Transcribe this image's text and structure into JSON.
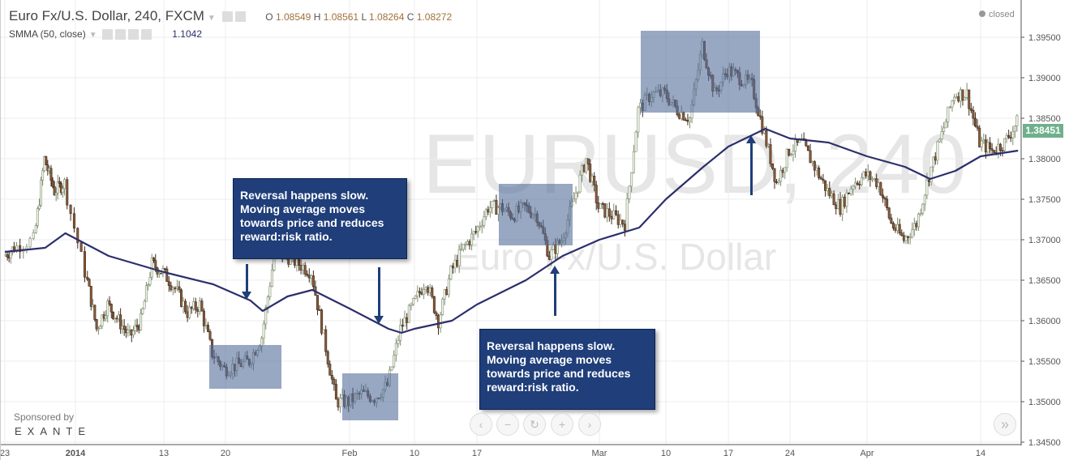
{
  "header": {
    "symbol_title": "Euro Fx/U.S. Dollar, 240, FXCM",
    "ohlc": {
      "o_label": "O",
      "o": "1.08549",
      "h_label": "H",
      "h": "1.08561",
      "l_label": "L",
      "l": "1.08264",
      "c_label": "C",
      "c": "1.08272"
    },
    "indicator": "SMMA (50, close)",
    "indicator_value": "1.1042",
    "status": "closed"
  },
  "watermark": {
    "symbol": "EURUSD, 240",
    "name": "Euro Fx/U.S. Dollar"
  },
  "annotations": {
    "callout_1": [
      "Reversal happens slow.",
      "Moving average moves",
      "towards price and reduces",
      "reward:risk ratio."
    ],
    "callout_2": [
      "Reversal happens slow.",
      "Moving average moves",
      "towards price and reduces",
      "reward:risk ratio."
    ]
  },
  "sponsor": {
    "label": "Sponsored by",
    "brand": "EXANTE"
  },
  "nav_buttons": [
    "‹",
    "−",
    "↻",
    "+",
    "›"
  ],
  "scroll_right": "»",
  "last_price": "1.38451",
  "colors": {
    "down_body": "#8a5a3a",
    "up_outline": "#7d8c6e",
    "smma": "#2b2f6b",
    "highlight": "#546c99",
    "callout": "#1f3e7a",
    "last_price": "#6fb08c"
  },
  "chart_data": {
    "type": "candlestick",
    "title": "Euro Fx/U.S. Dollar, 240, FXCM",
    "ylim": [
      1.3448,
      1.3996
    ],
    "y_ticks": [
      "1.39500",
      "1.39000",
      "1.38500",
      "1.38000",
      "1.37500",
      "1.37000",
      "1.36500",
      "1.36000",
      "1.35500",
      "1.35000",
      "1.34500"
    ],
    "x_ticks": [
      {
        "label": "23",
        "date": "2013-12-23"
      },
      {
        "label": "2014",
        "date": "2014-01-01"
      },
      {
        "label": "13",
        "date": "2014-01-13"
      },
      {
        "label": "20",
        "date": "2014-01-20"
      },
      {
        "label": "Feb",
        "date": "2014-02-03"
      },
      {
        "label": "10",
        "date": "2014-02-10"
      },
      {
        "label": "17",
        "date": "2014-02-17"
      },
      {
        "label": "Mar",
        "date": "2014-03-03"
      },
      {
        "label": "10",
        "date": "2014-03-10"
      },
      {
        "label": "17",
        "date": "2014-03-17"
      },
      {
        "label": "24",
        "date": "2014-03-24"
      },
      {
        "label": "Apr",
        "date": "2014-04-01"
      },
      {
        "label": "14",
        "date": "2014-04-14"
      }
    ],
    "grid": true,
    "close_path": [
      [
        "2013-12-23",
        1.368
      ],
      [
        "2013-12-24",
        1.369
      ],
      [
        "2013-12-26",
        1.37
      ],
      [
        "2013-12-27",
        1.38
      ],
      [
        "2013-12-30",
        1.376
      ],
      [
        "2013-12-31",
        1.377
      ],
      [
        "2014-01-02",
        1.366
      ],
      [
        "2014-01-03",
        1.359
      ],
      [
        "2014-01-06",
        1.362
      ],
      [
        "2014-01-07",
        1.36
      ],
      [
        "2014-01-08",
        1.358
      ],
      [
        "2014-01-09",
        1.36
      ],
      [
        "2014-01-10",
        1.367
      ],
      [
        "2014-01-13",
        1.366
      ],
      [
        "2014-01-14",
        1.364
      ],
      [
        "2014-01-15",
        1.361
      ],
      [
        "2014-01-16",
        1.362
      ],
      [
        "2014-01-17",
        1.356
      ],
      [
        "2014-01-20",
        1.354
      ],
      [
        "2014-01-21",
        1.3545
      ],
      [
        "2014-01-22",
        1.355
      ],
      [
        "2014-01-23",
        1.358
      ],
      [
        "2014-01-24",
        1.368
      ],
      [
        "2014-01-27",
        1.368
      ],
      [
        "2014-01-28",
        1.367
      ],
      [
        "2014-01-29",
        1.366
      ],
      [
        "2014-01-30",
        1.358
      ],
      [
        "2014-01-31",
        1.35
      ],
      [
        "2014-02-03",
        1.35
      ],
      [
        "2014-02-04",
        1.351
      ],
      [
        "2014-02-05",
        1.3505
      ],
      [
        "2014-02-06",
        1.352
      ],
      [
        "2014-02-07",
        1.359
      ],
      [
        "2014-02-10",
        1.362
      ],
      [
        "2014-02-11",
        1.365
      ],
      [
        "2014-02-12",
        1.36
      ],
      [
        "2014-02-13",
        1.366
      ],
      [
        "2014-02-14",
        1.369
      ],
      [
        "2014-02-17",
        1.371
      ],
      [
        "2014-02-18",
        1.374
      ],
      [
        "2014-02-19",
        1.374
      ],
      [
        "2014-02-20",
        1.373
      ],
      [
        "2014-02-21",
        1.374
      ],
      [
        "2014-02-24",
        1.373
      ],
      [
        "2014-02-25",
        1.368
      ],
      [
        "2014-02-26",
        1.37
      ],
      [
        "2014-02-27",
        1.375
      ],
      [
        "2014-02-28",
        1.38
      ],
      [
        "2014-03-03",
        1.374
      ],
      [
        "2014-03-04",
        1.373
      ],
      [
        "2014-03-05",
        1.372
      ],
      [
        "2014-03-06",
        1.386
      ],
      [
        "2014-03-07",
        1.388
      ],
      [
        "2014-03-10",
        1.388
      ],
      [
        "2014-03-11",
        1.386
      ],
      [
        "2014-03-12",
        1.385
      ],
      [
        "2014-03-13",
        1.394
      ],
      [
        "2014-03-14",
        1.388
      ],
      [
        "2014-03-17",
        1.391
      ],
      [
        "2014-03-18",
        1.39
      ],
      [
        "2014-03-19",
        1.389
      ],
      [
        "2014-03-20",
        1.383
      ],
      [
        "2014-03-21",
        1.377
      ],
      [
        "2014-03-24",
        1.381
      ],
      [
        "2014-03-25",
        1.382
      ],
      [
        "2014-03-26",
        1.379
      ],
      [
        "2014-03-27",
        1.376
      ],
      [
        "2014-03-28",
        1.374
      ],
      [
        "2014-03-31",
        1.377
      ],
      [
        "2014-04-01",
        1.378
      ],
      [
        "2014-04-02",
        1.377
      ],
      [
        "2014-04-03",
        1.372
      ],
      [
        "2014-04-04",
        1.37
      ],
      [
        "2014-04-07",
        1.372
      ],
      [
        "2014-04-08",
        1.378
      ],
      [
        "2014-04-09",
        1.383
      ],
      [
        "2014-04-10",
        1.388
      ],
      [
        "2014-04-11",
        1.388
      ],
      [
        "2014-04-14",
        1.382
      ],
      [
        "2014-04-15",
        1.381
      ],
      [
        "2014-04-16",
        1.382
      ],
      [
        "2014-04-17",
        1.3845
      ]
    ],
    "smma": [
      [
        "2013-12-23",
        1.3685
      ],
      [
        "2013-12-27",
        1.369
      ],
      [
        "2013-12-31",
        1.3708
      ],
      [
        "2014-01-06",
        1.368
      ],
      [
        "2014-01-13",
        1.366
      ],
      [
        "2014-01-17",
        1.3645
      ],
      [
        "2014-01-22",
        1.3625
      ],
      [
        "2014-01-23",
        1.3612
      ],
      [
        "2014-01-27",
        1.363
      ],
      [
        "2014-01-29",
        1.3638
      ],
      [
        "2014-02-03",
        1.3615
      ],
      [
        "2014-02-06",
        1.359
      ],
      [
        "2014-02-07",
        1.3585
      ],
      [
        "2014-02-10",
        1.359
      ],
      [
        "2014-02-13",
        1.36
      ],
      [
        "2014-02-17",
        1.362
      ],
      [
        "2014-02-21",
        1.365
      ],
      [
        "2014-02-26",
        1.368
      ],
      [
        "2014-03-03",
        1.37
      ],
      [
        "2014-03-06",
        1.3715
      ],
      [
        "2014-03-10",
        1.375
      ],
      [
        "2014-03-13",
        1.379
      ],
      [
        "2014-03-17",
        1.3815
      ],
      [
        "2014-03-20",
        1.3837
      ],
      [
        "2014-03-24",
        1.3825
      ],
      [
        "2014-03-27",
        1.382
      ],
      [
        "2014-04-01",
        1.3803
      ],
      [
        "2014-04-04",
        1.379
      ],
      [
        "2014-04-08",
        1.3775
      ],
      [
        "2014-04-10",
        1.3785
      ],
      [
        "2014-04-14",
        1.3803
      ],
      [
        "2014-04-17",
        1.381
      ]
    ]
  }
}
